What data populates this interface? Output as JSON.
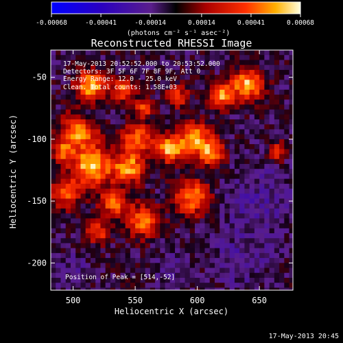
{
  "chart_data": {
    "type": "heatmap",
    "title": "Reconstructed RHESSI Image",
    "xlabel": "Heliocentric X (arcsec)",
    "ylabel": "Heliocentric Y (arcsec)",
    "xlim": [
      482,
      677
    ],
    "ylim": [
      -222,
      -28
    ],
    "x_ticks": [
      500,
      550,
      600,
      650
    ],
    "y_ticks": [
      -50,
      -100,
      -150,
      -200
    ],
    "colorbar": {
      "ticks": [
        "-0.00068",
        "-0.00041",
        "-0.00014",
        "0.00014",
        "0.00041",
        "0.00068"
      ],
      "tick_values": [
        -0.00068,
        -0.00041,
        -0.00014,
        0.00014,
        0.00041,
        0.00068
      ],
      "range": [
        -0.00068,
        0.00068
      ],
      "unit_label": "(photons cm⁻² s⁻¹ asec⁻²)"
    },
    "annotations": [
      "17-May-2013 20:52:52.000 to 20:53:52.000",
      "Detectors: 3F 5F 6F 7F 8F 9F, Att 0",
      "Energy Range: 12.0 - 25.0 keV",
      "Clean.  Total counts: 1.58E+03"
    ],
    "peak_text": "Position of Peak = [514,-52]",
    "peak": [
      514,
      -52
    ],
    "footer": "17-May-2013 20:45",
    "colors": {
      "negative": "#0000ff",
      "mid": "#5a1e8c",
      "warm": "#ff2000",
      "hot": "#ffff80",
      "background": "#000000"
    },
    "blobs": [
      {
        "x": 514,
        "y": -57,
        "r": 12,
        "v": 0.00062
      },
      {
        "x": 505,
        "y": -93,
        "r": 14,
        "v": 0.00054
      },
      {
        "x": 515,
        "y": -122,
        "r": 16,
        "v": 0.00066
      },
      {
        "x": 545,
        "y": -123,
        "r": 12,
        "v": 0.00056
      },
      {
        "x": 552,
        "y": -100,
        "r": 12,
        "v": 0.0005
      },
      {
        "x": 578,
        "y": -108,
        "r": 11,
        "v": 0.00058
      },
      {
        "x": 598,
        "y": -99,
        "r": 13,
        "v": 0.00057
      },
      {
        "x": 612,
        "y": -112,
        "r": 10,
        "v": 0.00052
      },
      {
        "x": 620,
        "y": -64,
        "r": 10,
        "v": 0.00055
      },
      {
        "x": 641,
        "y": -56,
        "r": 12,
        "v": 0.00062
      },
      {
        "x": 584,
        "y": -65,
        "r": 9,
        "v": 0.00038
      },
      {
        "x": 557,
        "y": -75,
        "r": 8,
        "v": 0.00042
      },
      {
        "x": 540,
        "y": -60,
        "r": 9,
        "v": 0.00045
      },
      {
        "x": 596,
        "y": -147,
        "r": 14,
        "v": 0.00052
      },
      {
        "x": 556,
        "y": -166,
        "r": 13,
        "v": 0.00049
      },
      {
        "x": 533,
        "y": -152,
        "r": 11,
        "v": 0.00046
      },
      {
        "x": 520,
        "y": -175,
        "r": 9,
        "v": 0.0004
      },
      {
        "x": 494,
        "y": -144,
        "r": 12,
        "v": 0.0004
      },
      {
        "x": 492,
        "y": -110,
        "r": 8,
        "v": 0.00045
      },
      {
        "x": 665,
        "y": -110,
        "r": 7,
        "v": 0.0004
      }
    ],
    "cold_regions": [
      {
        "x": 650,
        "y": -150,
        "r": 28,
        "v": -0.00014
      },
      {
        "x": 635,
        "y": -197,
        "r": 22,
        "v": -0.00012
      },
      {
        "x": 580,
        "y": -205,
        "r": 15,
        "v": -0.0001
      },
      {
        "x": 510,
        "y": -80,
        "r": 10,
        "v": -0.00012
      },
      {
        "x": 500,
        "y": -205,
        "r": 14,
        "v": -0.0001
      }
    ]
  }
}
